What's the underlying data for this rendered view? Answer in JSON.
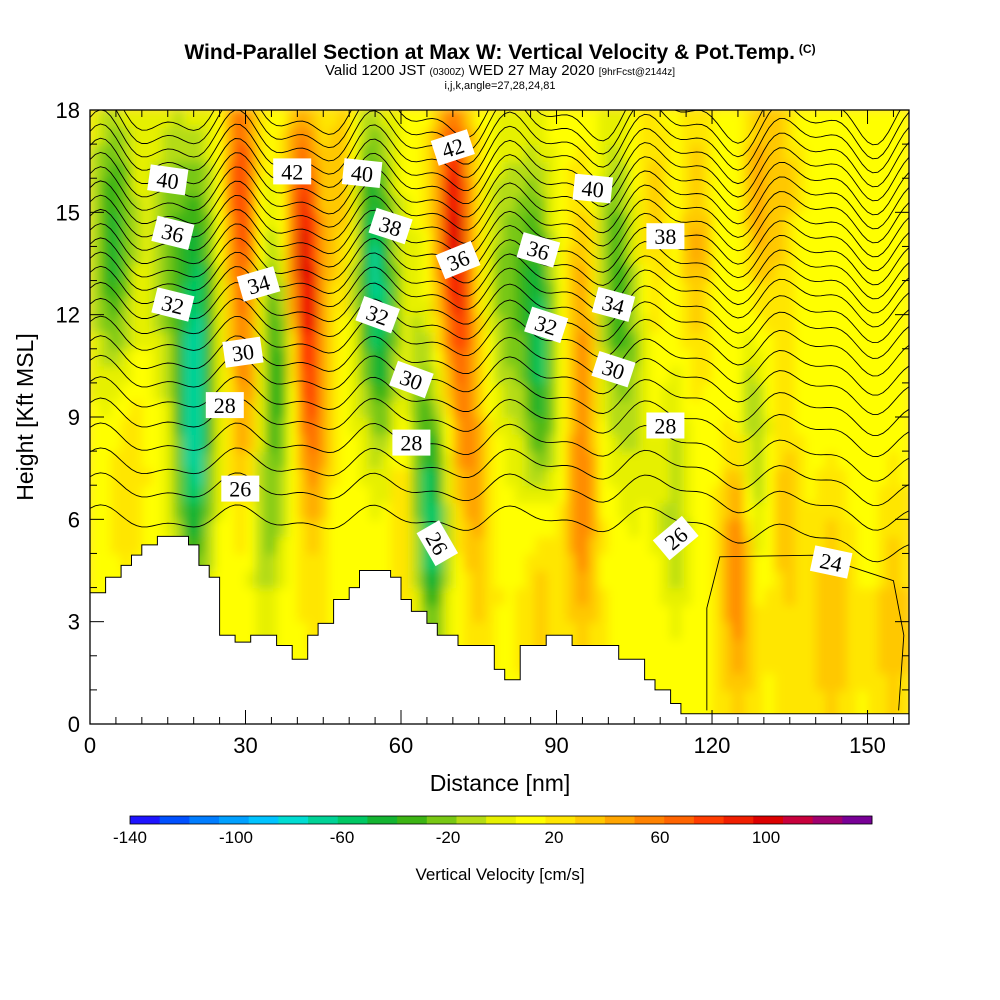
{
  "header": {
    "title": "Wind-Parallel Section at Max W: Vertical Velocity & Pot.Temp.",
    "copyright": "(C)",
    "valid_prefix": "Valid 1200 JST",
    "valid_utc": "(0300Z)",
    "valid_date": "WED 27 May 2020",
    "forecast_info": "[9hrFcst@2144z]",
    "section_indices": "i,j,k,angle=27,28,24,81"
  },
  "chart_data": {
    "type": "heatmap",
    "title": "Wind-Parallel Section at Max W: Vertical Velocity & Pot.Temp.",
    "xlabel": "Distance [nm]",
    "ylabel": "Height [Kft MSL]",
    "xlim": [
      0,
      158
    ],
    "ylim": [
      0,
      18
    ],
    "x_ticks": [
      0,
      30,
      60,
      90,
      120,
      150
    ],
    "y_ticks": [
      0,
      3,
      6,
      9,
      12,
      15,
      18
    ],
    "grid": false,
    "colorbar": {
      "title": "Vertical Velocity [cm/s]",
      "range": [
        -140,
        140
      ],
      "tick_values": [
        -140,
        -100,
        -60,
        -20,
        20,
        60,
        100
      ],
      "colors": [
        "#1e14ff",
        "#0050ff",
        "#007dff",
        "#00a0ff",
        "#00c3ff",
        "#00dcd2",
        "#00d296",
        "#00c864",
        "#14b432",
        "#3cb414",
        "#78c814",
        "#b4dc14",
        "#e6f000",
        "#ffff00",
        "#ffe600",
        "#ffc800",
        "#ffa500",
        "#ff8200",
        "#ff6400",
        "#ff3c00",
        "#f01e00",
        "#dc0000",
        "#c8003c",
        "#a0006e",
        "#780096"
      ],
      "placement": "bottom"
    },
    "theta_contour_labels": [
      {
        "value": "40",
        "x": 15,
        "y": 15.95
      },
      {
        "value": "42",
        "x": 39,
        "y": 16.2
      },
      {
        "value": "40",
        "x": 52.5,
        "y": 16.15
      },
      {
        "value": "42",
        "x": 70,
        "y": 16.9
      },
      {
        "value": "40",
        "x": 97,
        "y": 15.7
      },
      {
        "value": "36",
        "x": 16,
        "y": 14.4
      },
      {
        "value": "34",
        "x": 32.5,
        "y": 12.9
      },
      {
        "value": "38",
        "x": 58,
        "y": 14.6
      },
      {
        "value": "36",
        "x": 71,
        "y": 13.6
      },
      {
        "value": "36",
        "x": 86.5,
        "y": 13.9
      },
      {
        "value": "38",
        "x": 111,
        "y": 14.3
      },
      {
        "value": "32",
        "x": 16,
        "y": 12.3
      },
      {
        "value": "32",
        "x": 55.5,
        "y": 12.0
      },
      {
        "value": "32",
        "x": 88,
        "y": 11.7
      },
      {
        "value": "34",
        "x": 101,
        "y": 12.3
      },
      {
        "value": "30",
        "x": 29.5,
        "y": 10.9
      },
      {
        "value": "30",
        "x": 62,
        "y": 10.1
      },
      {
        "value": "30",
        "x": 101,
        "y": 10.4
      },
      {
        "value": "28",
        "x": 26,
        "y": 9.35
      },
      {
        "value": "28",
        "x": 62,
        "y": 8.25
      },
      {
        "value": "28",
        "x": 111,
        "y": 8.75
      },
      {
        "value": "26",
        "x": 29,
        "y": 6.9
      },
      {
        "value": "26",
        "x": 67,
        "y": 5.3
      },
      {
        "value": "26",
        "x": 113,
        "y": 5.45
      },
      {
        "value": "24",
        "x": 143,
        "y": 4.75
      }
    ],
    "terrain": [
      [
        0,
        3.85
      ],
      [
        3,
        3.85
      ],
      [
        3,
        4.3
      ],
      [
        6,
        4.3
      ],
      [
        6,
        4.65
      ],
      [
        8,
        4.65
      ],
      [
        8,
        4.95
      ],
      [
        10,
        4.95
      ],
      [
        10,
        5.25
      ],
      [
        13,
        5.25
      ],
      [
        13,
        5.5
      ],
      [
        19,
        5.5
      ],
      [
        19,
        5.25
      ],
      [
        21,
        5.25
      ],
      [
        21,
        4.65
      ],
      [
        23,
        4.65
      ],
      [
        23,
        4.3
      ],
      [
        25,
        4.3
      ],
      [
        25,
        2.6
      ],
      [
        28,
        2.6
      ],
      [
        28,
        2.4
      ],
      [
        31,
        2.4
      ],
      [
        31,
        2.6
      ],
      [
        36,
        2.6
      ],
      [
        36,
        2.3
      ],
      [
        39,
        2.3
      ],
      [
        39,
        1.9
      ],
      [
        42,
        1.9
      ],
      [
        42,
        2.6
      ],
      [
        44,
        2.6
      ],
      [
        44,
        2.95
      ],
      [
        47,
        2.95
      ],
      [
        47,
        3.65
      ],
      [
        50,
        3.65
      ],
      [
        50,
        4.0
      ],
      [
        52,
        4.0
      ],
      [
        52,
        4.5
      ],
      [
        58,
        4.5
      ],
      [
        58,
        4.3
      ],
      [
        60,
        4.3
      ],
      [
        60,
        3.65
      ],
      [
        62,
        3.65
      ],
      [
        62,
        3.3
      ],
      [
        65,
        3.3
      ],
      [
        65,
        2.95
      ],
      [
        67,
        2.95
      ],
      [
        67,
        2.6
      ],
      [
        71,
        2.6
      ],
      [
        71,
        2.3
      ],
      [
        78,
        2.3
      ],
      [
        78,
        1.6
      ],
      [
        80,
        1.6
      ],
      [
        80,
        1.3
      ],
      [
        83,
        1.3
      ],
      [
        83,
        2.3
      ],
      [
        88,
        2.3
      ],
      [
        88,
        2.6
      ],
      [
        93,
        2.6
      ],
      [
        93,
        2.3
      ],
      [
        102,
        2.3
      ],
      [
        102,
        1.9
      ],
      [
        107,
        1.9
      ],
      [
        107,
        1.3
      ],
      [
        109,
        1.3
      ],
      [
        109,
        1.0
      ],
      [
        112,
        1.0
      ],
      [
        112,
        0.6
      ],
      [
        114,
        0.6
      ],
      [
        114,
        0.3
      ],
      [
        158,
        0.3
      ]
    ]
  }
}
